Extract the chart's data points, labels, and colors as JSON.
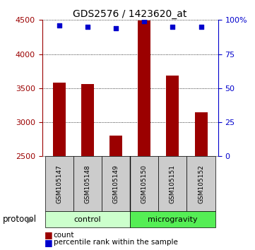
{
  "title": "GDS2576 / 1423620_at",
  "samples": [
    "GSM105147",
    "GSM105148",
    "GSM105149",
    "GSM105150",
    "GSM105151",
    "GSM105152"
  ],
  "counts": [
    3580,
    3560,
    2800,
    4490,
    3680,
    3150
  ],
  "percentiles": [
    96,
    95,
    94,
    99,
    95,
    95
  ],
  "ylim_left": [
    2500,
    4500
  ],
  "ylim_right": [
    0,
    100
  ],
  "yticks_left": [
    2500,
    3000,
    3500,
    4000,
    4500
  ],
  "yticks_right": [
    0,
    25,
    50,
    75,
    100
  ],
  "bar_color": "#9B0000",
  "scatter_color": "#0000CC",
  "control_samples": [
    0,
    1,
    2
  ],
  "microgravity_samples": [
    3,
    4,
    5
  ],
  "control_label": "control",
  "microgravity_label": "microgravity",
  "control_bg": "#ccffcc",
  "microgravity_bg": "#55ee55",
  "sample_bg": "#cccccc",
  "protocol_label": "protocol",
  "legend_count_label": "count",
  "legend_percentile_label": "percentile rank within the sample",
  "bar_width": 0.45,
  "title_fontsize": 10,
  "tick_fontsize": 8,
  "sample_fontsize": 6.5,
  "label_fontsize": 8
}
